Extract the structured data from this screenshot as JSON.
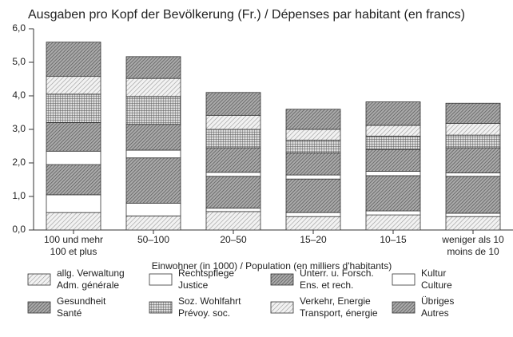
{
  "chart_data": {
    "type": "stacked-bar",
    "title": "Ausgaben pro Kopf der Bevölkerung (Fr.) / Dépenses par habitant (en francs)",
    "x_label": "Einwohner (in 1000) / Population (en milliers d'habitants)",
    "categories": [
      [
        "100 und mehr",
        "100 et plus"
      ],
      [
        "50–100"
      ],
      [
        "20–50"
      ],
      [
        "15–20"
      ],
      [
        "10–15"
      ],
      [
        "weniger als 10",
        "moins de 10"
      ]
    ],
    "ylim": [
      0,
      6
    ],
    "yticks": [
      {
        "value": 0,
        "label": "0,0"
      },
      {
        "value": 1,
        "label": "1,0"
      },
      {
        "value": 2,
        "label": "2,0"
      },
      {
        "value": 3,
        "label": "3,0"
      },
      {
        "value": 4,
        "label": "4,0"
      },
      {
        "value": 5,
        "label": "5,0"
      },
      {
        "value": 6,
        "label": "6,0"
      }
    ],
    "series": [
      {
        "name": [
          "allg. Verwaltung",
          "Adm. générale"
        ],
        "pattern": "hatch-light",
        "values": [
          0.52,
          0.42,
          0.55,
          0.4,
          0.45,
          0.4
        ]
      },
      {
        "name": [
          "Rechtspflege",
          "Justice"
        ],
        "pattern": "white",
        "values": [
          0.53,
          0.38,
          0.1,
          0.12,
          0.12,
          0.1
        ]
      },
      {
        "name": [
          "Unterr. u. Forsch.",
          "Ens. et rech."
        ],
        "pattern": "hatch-dark",
        "values": [
          0.9,
          1.35,
          0.95,
          1.0,
          1.05,
          1.1
        ]
      },
      {
        "name": [
          "Kultur",
          "Culture"
        ],
        "pattern": "white",
        "values": [
          0.4,
          0.23,
          0.12,
          0.12,
          0.13,
          0.1
        ]
      },
      {
        "name": [
          "Gesundheit",
          "Santé"
        ],
        "pattern": "hatch-dark",
        "values": [
          0.85,
          0.77,
          0.73,
          0.66,
          0.65,
          0.75
        ]
      },
      {
        "name": [
          "Soz. Wohlfahrt",
          "Prévoy. soc."
        ],
        "pattern": "cross",
        "values": [
          0.85,
          0.83,
          0.55,
          0.38,
          0.4,
          0.38
        ]
      },
      {
        "name": [
          "Verkehr, Energie",
          "Transport, énergie"
        ],
        "pattern": "hatch-light",
        "values": [
          0.53,
          0.54,
          0.42,
          0.32,
          0.32,
          0.35
        ]
      },
      {
        "name": [
          "Übriges",
          "Autres"
        ],
        "pattern": "hatch-dark",
        "values": [
          1.02,
          0.65,
          0.68,
          0.6,
          0.7,
          0.6
        ]
      }
    ]
  }
}
